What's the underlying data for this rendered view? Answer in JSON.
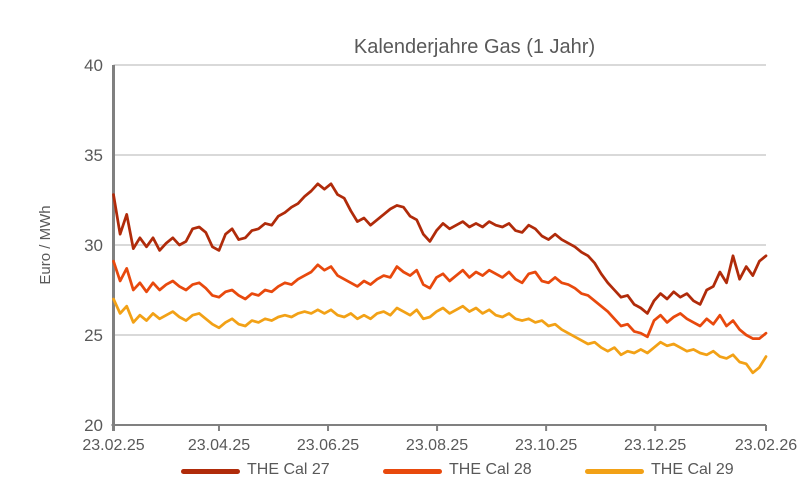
{
  "chart_data": {
    "type": "line",
    "title": "Kalenderjahre Gas (1 Jahr)",
    "xlabel": "",
    "ylabel": "Euro / MWh",
    "ylim": [
      20,
      40
    ],
    "y_ticks": [
      40,
      35,
      30,
      25,
      20
    ],
    "x_range_days": [
      0,
      365
    ],
    "x_ticks": [
      {
        "label": "23.02.25",
        "day": 0
      },
      {
        "label": "23.04.25",
        "day": 59
      },
      {
        "label": "23.06.25",
        "day": 120
      },
      {
        "label": "23.08.25",
        "day": 181
      },
      {
        "label": "23.10.25",
        "day": 242
      },
      {
        "label": "23.12.25",
        "day": 303
      },
      {
        "label": "23.02.26",
        "day": 365
      }
    ],
    "grid": "horizontal",
    "legend_position": "bottom",
    "colors": {
      "grid": "#D9D9D9",
      "axis": "#808080",
      "text": "#595959"
    },
    "series": [
      {
        "name": "THE Cal 27",
        "color": "#B02B0A",
        "values": [
          32.8,
          30.6,
          31.7,
          29.8,
          30.4,
          29.9,
          30.4,
          29.7,
          30.1,
          30.4,
          30.0,
          30.2,
          30.9,
          31.0,
          30.7,
          29.9,
          29.7,
          30.6,
          30.9,
          30.3,
          30.4,
          30.8,
          30.9,
          31.2,
          31.1,
          31.6,
          31.8,
          32.1,
          32.3,
          32.7,
          33.0,
          33.4,
          33.1,
          33.4,
          32.8,
          32.6,
          31.9,
          31.3,
          31.5,
          31.1,
          31.4,
          31.7,
          32.0,
          32.2,
          32.1,
          31.6,
          31.4,
          30.6,
          30.2,
          30.8,
          31.2,
          30.9,
          31.1,
          31.3,
          31.0,
          31.2,
          31.0,
          31.3,
          31.1,
          31.0,
          31.2,
          30.8,
          30.7,
          31.1,
          30.9,
          30.5,
          30.3,
          30.6,
          30.3,
          30.1,
          29.9,
          29.6,
          29.4,
          29.0,
          28.4,
          27.9,
          27.5,
          27.1,
          27.2,
          26.7,
          26.5,
          26.2,
          26.9,
          27.3,
          27.0,
          27.4,
          27.1,
          27.3,
          26.9,
          26.7,
          27.5,
          27.7,
          28.5,
          27.9,
          29.4,
          28.1,
          28.8,
          28.3,
          29.1,
          29.4
        ]
      },
      {
        "name": "THE Cal 28",
        "color": "#E8490D",
        "values": [
          29.1,
          28.0,
          28.7,
          27.5,
          27.9,
          27.4,
          27.9,
          27.5,
          27.8,
          28.0,
          27.7,
          27.5,
          27.8,
          27.9,
          27.6,
          27.2,
          27.1,
          27.4,
          27.5,
          27.2,
          27.0,
          27.3,
          27.2,
          27.5,
          27.4,
          27.7,
          27.9,
          27.8,
          28.1,
          28.3,
          28.5,
          28.9,
          28.6,
          28.8,
          28.3,
          28.1,
          27.9,
          27.7,
          28.0,
          27.8,
          28.1,
          28.3,
          28.2,
          28.8,
          28.5,
          28.3,
          28.6,
          27.8,
          27.6,
          28.2,
          28.4,
          28.0,
          28.3,
          28.6,
          28.2,
          28.5,
          28.3,
          28.6,
          28.4,
          28.2,
          28.5,
          28.1,
          27.9,
          28.4,
          28.5,
          28.0,
          27.9,
          28.2,
          27.9,
          27.8,
          27.6,
          27.3,
          27.2,
          26.9,
          26.6,
          26.3,
          25.9,
          25.5,
          25.6,
          25.2,
          25.1,
          24.9,
          25.8,
          26.1,
          25.7,
          26.0,
          26.2,
          25.9,
          25.7,
          25.5,
          25.9,
          25.6,
          26.1,
          25.5,
          25.8,
          25.3,
          25.0,
          24.8,
          24.8,
          25.1
        ]
      },
      {
        "name": "THE Cal 29",
        "color": "#F2A116",
        "values": [
          27.0,
          26.2,
          26.6,
          25.7,
          26.1,
          25.8,
          26.2,
          25.9,
          26.1,
          26.3,
          26.0,
          25.8,
          26.1,
          26.2,
          25.9,
          25.6,
          25.4,
          25.7,
          25.9,
          25.6,
          25.5,
          25.8,
          25.7,
          25.9,
          25.8,
          26.0,
          26.1,
          26.0,
          26.2,
          26.3,
          26.2,
          26.4,
          26.2,
          26.4,
          26.1,
          26.0,
          26.2,
          25.9,
          26.1,
          25.9,
          26.2,
          26.3,
          26.1,
          26.5,
          26.3,
          26.1,
          26.4,
          25.9,
          26.0,
          26.3,
          26.5,
          26.2,
          26.4,
          26.6,
          26.3,
          26.5,
          26.2,
          26.4,
          26.1,
          26.0,
          26.2,
          25.9,
          25.8,
          25.9,
          25.7,
          25.8,
          25.5,
          25.6,
          25.3,
          25.1,
          24.9,
          24.7,
          24.5,
          24.6,
          24.3,
          24.1,
          24.3,
          23.9,
          24.1,
          24.0,
          24.2,
          24.0,
          24.3,
          24.6,
          24.4,
          24.5,
          24.3,
          24.1,
          24.2,
          24.0,
          23.9,
          24.1,
          23.8,
          23.7,
          23.9,
          23.5,
          23.4,
          22.9,
          23.2,
          23.8
        ]
      }
    ]
  }
}
